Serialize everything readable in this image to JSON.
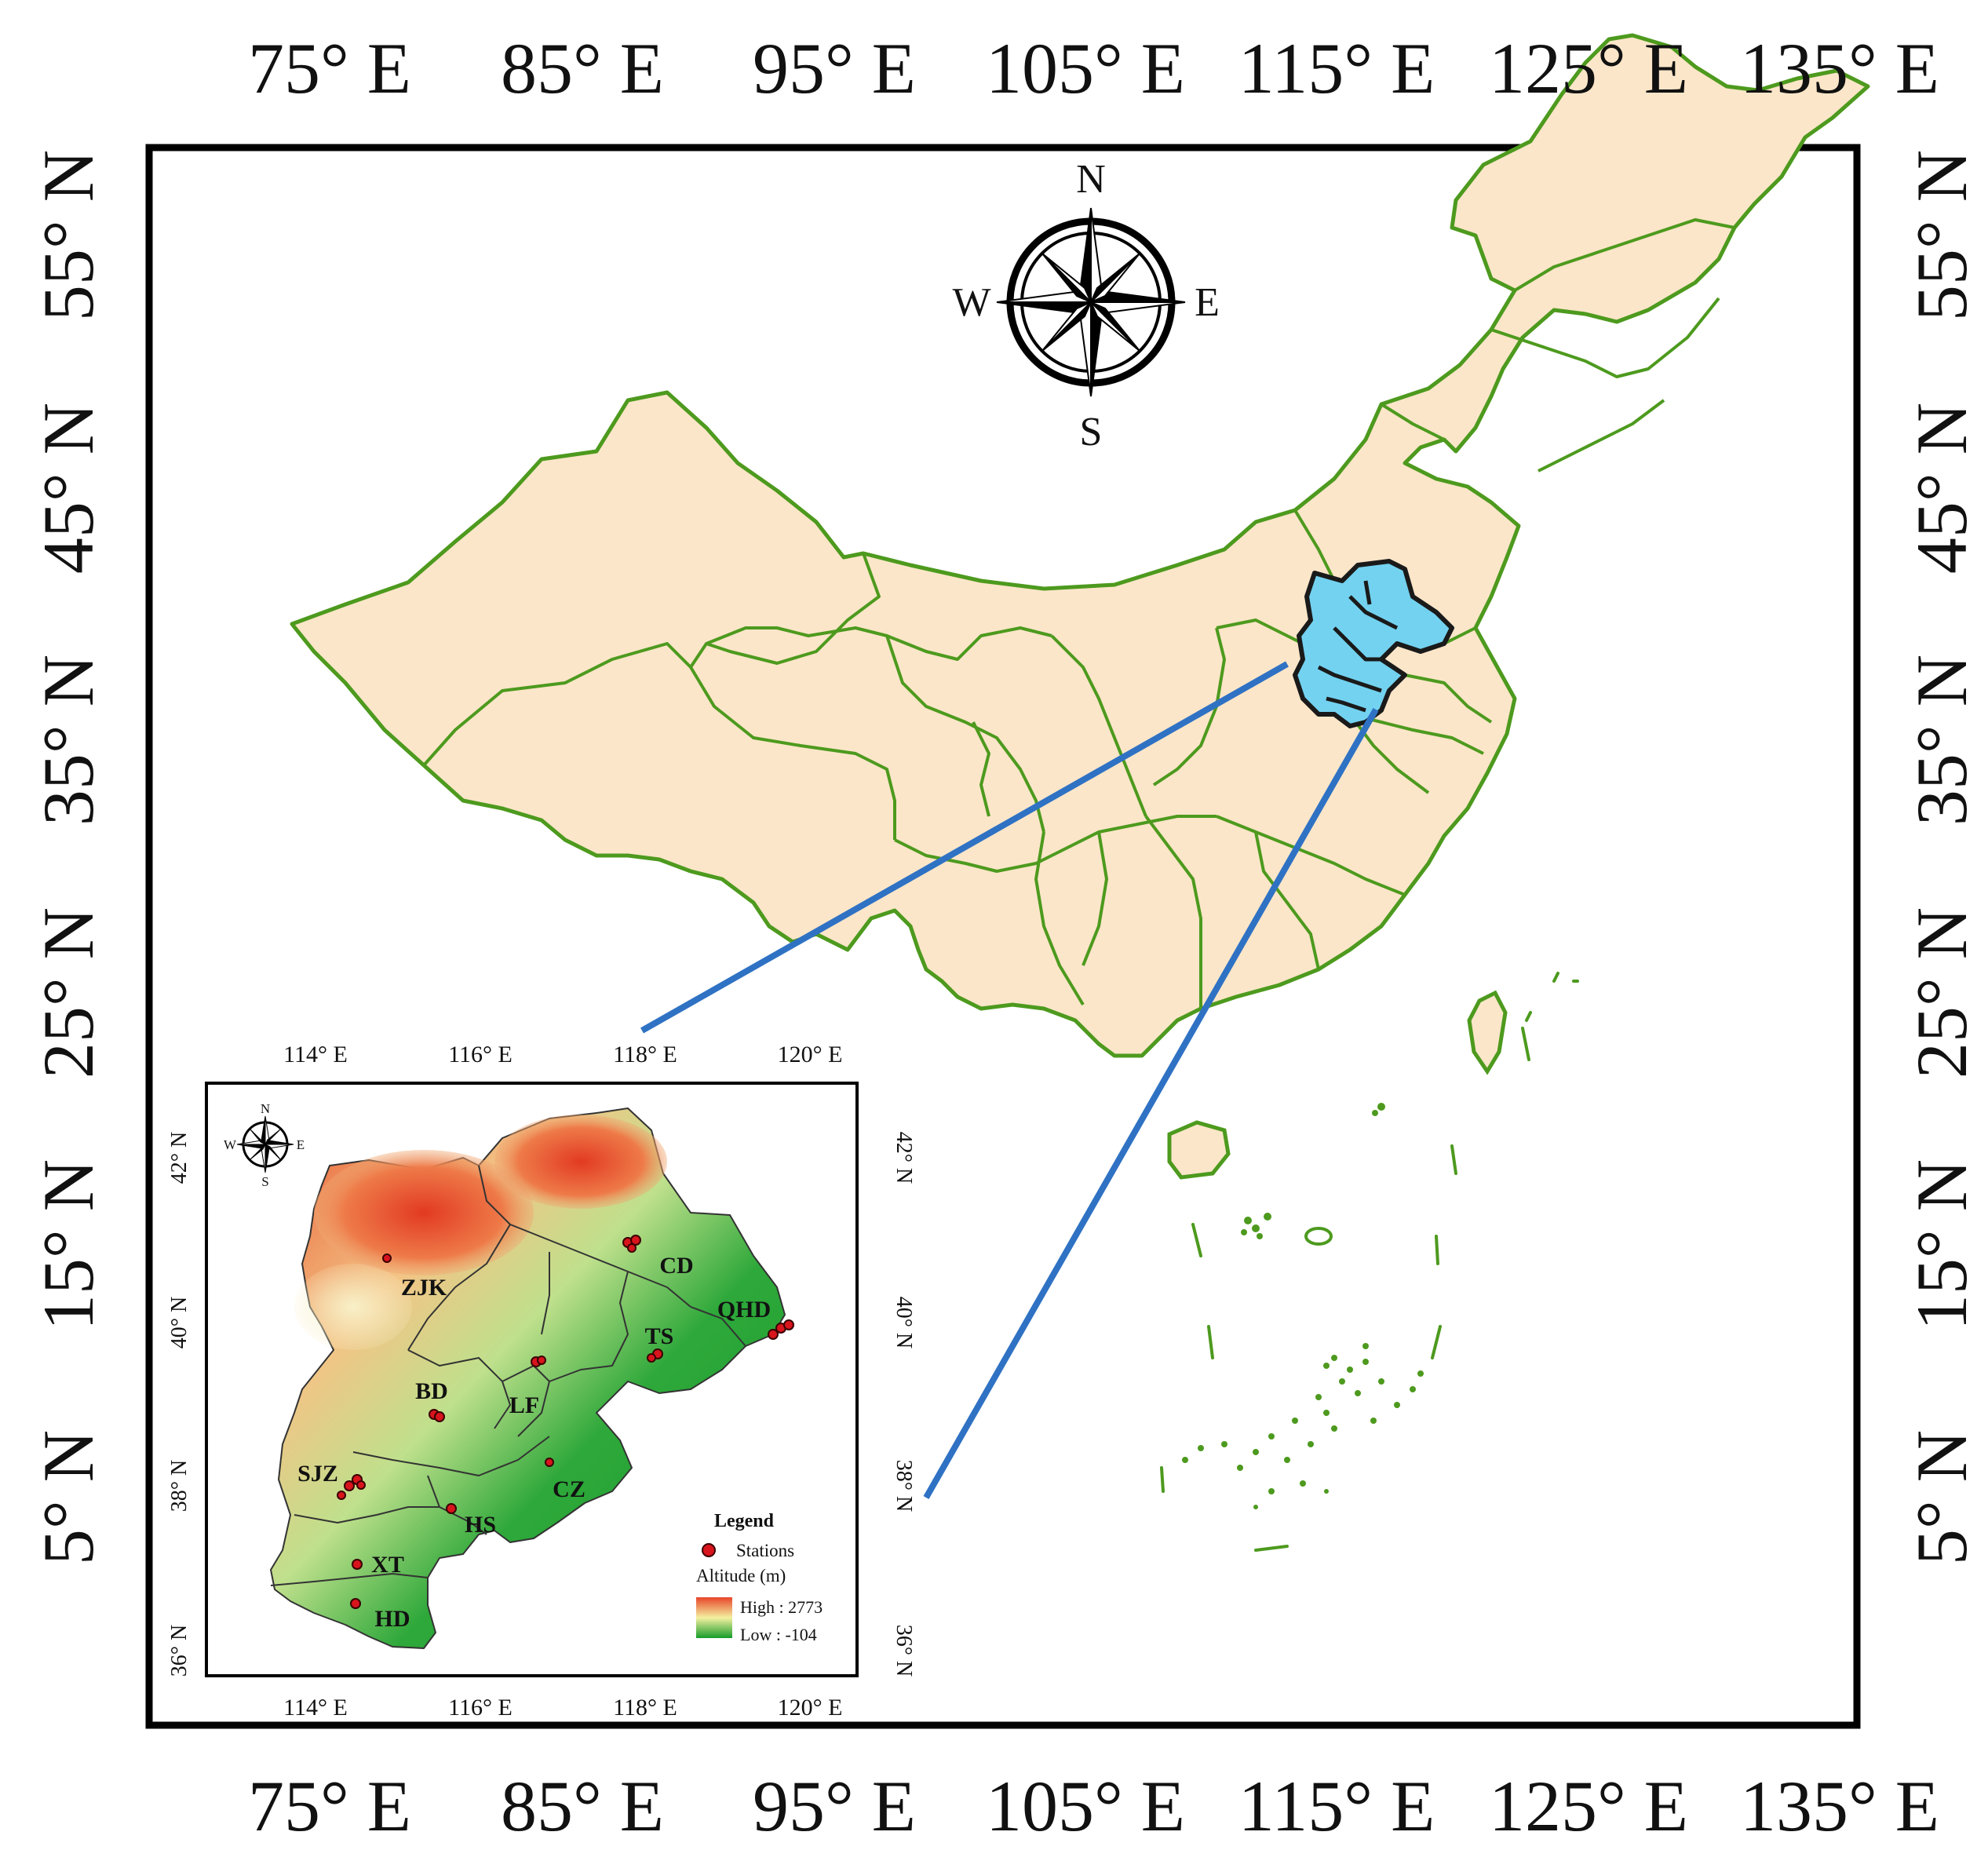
{
  "main_map": {
    "top_ticks": [
      "75° E",
      "85° E",
      "95° E",
      "105° E",
      "115° E",
      "125° E",
      "135° E"
    ],
    "bottom_ticks": [
      "75° E",
      "85° E",
      "95° E",
      "105° E",
      "115° E",
      "125° E",
      "135° E"
    ],
    "left_ticks": [
      "55° N",
      "45° N",
      "35° N",
      "25° N",
      "15° N",
      "5° N"
    ],
    "right_ticks": [
      "55° N",
      "45° N",
      "35° N",
      "25° N",
      "15° N",
      "5° N"
    ],
    "compass": {
      "n": "N",
      "s": "S",
      "e": "E",
      "w": "W"
    },
    "colors": {
      "land": "#fce6c9",
      "border": "#4d9a1e",
      "highlight": "#73d2f0",
      "leader": "#2f72c4",
      "frame": "#000000"
    }
  },
  "inset": {
    "top_ticks": [
      "114° E",
      "116° E",
      "118° E",
      "120° E"
    ],
    "bottom_ticks": [
      "114° E",
      "116° E",
      "118° E",
      "120° E"
    ],
    "left_ticks": [
      "42° N",
      "40° N",
      "38° N",
      "36° N"
    ],
    "right_ticks": [
      "42° N",
      "40° N",
      "38° N",
      "36° N"
    ],
    "compass": {
      "n": "N",
      "s": "S",
      "e": "E",
      "w": "W"
    },
    "cities": [
      "ZJK",
      "CD",
      "QHD",
      "TS",
      "BD",
      "LF",
      "SJZ",
      "CZ",
      "HS",
      "XT",
      "HD"
    ],
    "legend": {
      "title": "Legend",
      "stations": "Stations",
      "altitude": "Altitude (m)",
      "high": "High : 2773",
      "low": "Low : -104"
    },
    "colors": {
      "high": "#e8452a",
      "mid": "#f4f0a0",
      "low": "#169c2a",
      "station": "#d8141c"
    }
  }
}
